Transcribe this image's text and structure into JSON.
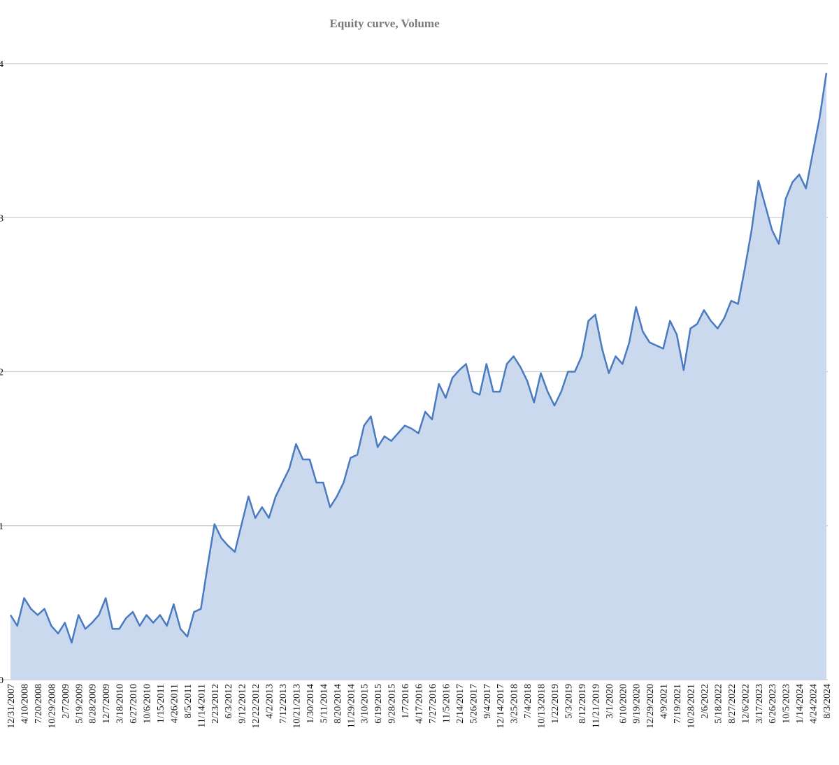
{
  "chart_data": {
    "type": "area",
    "title": "Equity curve, Volume",
    "categories": [
      "12/31/2007",
      null,
      "4/10/2008",
      null,
      "7/20/2008",
      null,
      "10/29/2008",
      null,
      "2/7/2009",
      null,
      "5/19/2009",
      null,
      "8/28/2009",
      null,
      "12/7/2009",
      null,
      "3/18/2010",
      null,
      "6/27/2010",
      null,
      "10/6/2010",
      null,
      "1/15/2011",
      null,
      "4/26/2011",
      null,
      "8/5/2011",
      null,
      "11/14/2011",
      null,
      "2/23/2012",
      null,
      "6/3/2012",
      null,
      "9/12/2012",
      null,
      "12/22/2012",
      null,
      "4/2/2013",
      null,
      "7/12/2013",
      null,
      "10/21/2013",
      null,
      "1/30/2014",
      null,
      "5/11/2014",
      null,
      "8/20/2014",
      null,
      "11/29/2014",
      null,
      "3/10/2015",
      null,
      "6/19/2015",
      null,
      "9/28/2015",
      null,
      "1/7/2016",
      null,
      "4/17/2016",
      null,
      "7/27/2016",
      null,
      "11/5/2016",
      null,
      "2/14/2017",
      null,
      "5/26/2017",
      null,
      "9/4/2017",
      null,
      "12/14/2017",
      null,
      "3/25/2018",
      null,
      "7/4/2018",
      null,
      "10/13/2018",
      null,
      "1/22/2019",
      null,
      "5/3/2019",
      null,
      "8/12/2019",
      null,
      "11/21/2019",
      null,
      "3/1/2020",
      null,
      "6/10/2020",
      null,
      "9/19/2020",
      null,
      "12/29/2020",
      null,
      "4/9/2021",
      null,
      "7/19/2021",
      null,
      "10/28/2021",
      null,
      "2/6/2022",
      null,
      "5/18/2022",
      null,
      "8/27/2022",
      null,
      "12/6/2022",
      null,
      "3/17/2023",
      null,
      "6/26/2023",
      null,
      "10/5/2023",
      null,
      "1/14/2024",
      null,
      "4/24/2024",
      null,
      "8/3/2024"
    ],
    "values": [
      0.42,
      0.35,
      0.53,
      0.46,
      0.42,
      0.46,
      0.35,
      0.3,
      0.37,
      0.24,
      0.42,
      0.33,
      0.37,
      0.42,
      0.53,
      0.33,
      0.33,
      0.4,
      0.44,
      0.35,
      0.42,
      0.37,
      0.42,
      0.35,
      0.49,
      0.33,
      0.28,
      0.44,
      0.46,
      0.74,
      1.01,
      0.92,
      0.87,
      0.83,
      1.01,
      1.19,
      1.05,
      1.12,
      1.05,
      1.19,
      1.28,
      1.37,
      1.53,
      1.43,
      1.43,
      1.28,
      1.28,
      1.12,
      1.19,
      1.28,
      1.44,
      1.46,
      1.65,
      1.71,
      1.51,
      1.58,
      1.55,
      1.6,
      1.65,
      1.63,
      1.6,
      1.74,
      1.69,
      1.92,
      1.83,
      1.96,
      2.01,
      2.05,
      1.87,
      1.85,
      2.05,
      1.87,
      1.87,
      2.05,
      2.1,
      2.03,
      1.94,
      1.8,
      1.99,
      1.87,
      1.78,
      1.87,
      2.0,
      2.0,
      2.1,
      2.33,
      2.37,
      2.15,
      1.99,
      2.1,
      2.05,
      2.19,
      2.42,
      2.26,
      2.19,
      2.17,
      2.15,
      2.33,
      2.24,
      2.01,
      2.28,
      2.31,
      2.4,
      2.33,
      2.28,
      2.35,
      2.46,
      2.44,
      2.67,
      2.92,
      3.24,
      3.08,
      2.92,
      2.83,
      3.12,
      3.23,
      3.28,
      3.19,
      3.42,
      3.65,
      3.94
    ],
    "color": "#4a7abf",
    "fill": "#cbd9ee",
    "ylim": [
      0,
      4
    ],
    "yticks": [
      0,
      1,
      2,
      3,
      4
    ],
    "grid": true
  }
}
